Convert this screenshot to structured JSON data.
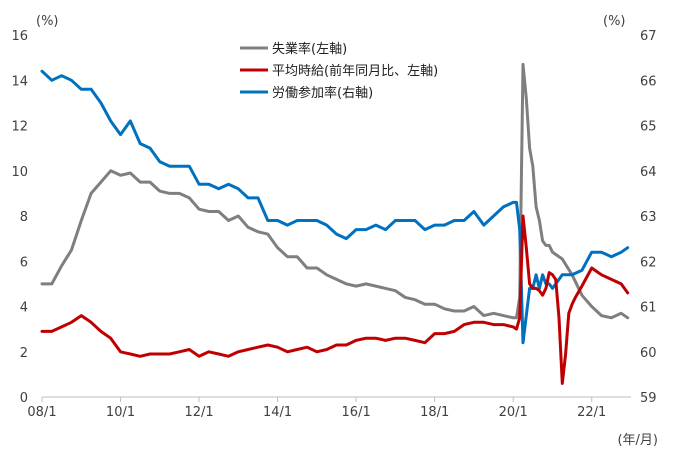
{
  "chart_data": {
    "type": "line",
    "units": {
      "left": "(%)",
      "right": "(%)",
      "x": "(年/月)"
    },
    "x_ticks": [
      "08/1",
      "10/1",
      "12/1",
      "14/1",
      "16/1",
      "18/1",
      "20/1",
      "22/1"
    ],
    "y_left": {
      "min": 0,
      "max": 16,
      "ticks": [
        0,
        2,
        4,
        6,
        8,
        10,
        12,
        14,
        16
      ]
    },
    "y_right": {
      "min": 59,
      "max": 67,
      "ticks": [
        59,
        60,
        61,
        62,
        63,
        64,
        65,
        66,
        67
      ]
    },
    "grid": false,
    "legend_position": "top-center",
    "series": [
      {
        "name": "失業率(左軸)",
        "axis": "left",
        "color": "#7f7f7f",
        "points": [
          [
            "2008-01",
            5.0
          ],
          [
            "2008-04",
            5.0
          ],
          [
            "2008-07",
            5.8
          ],
          [
            "2008-10",
            6.5
          ],
          [
            "2009-01",
            7.8
          ],
          [
            "2009-04",
            9.0
          ],
          [
            "2009-07",
            9.5
          ],
          [
            "2009-10",
            10.0
          ],
          [
            "2010-01",
            9.8
          ],
          [
            "2010-04",
            9.9
          ],
          [
            "2010-07",
            9.5
          ],
          [
            "2010-10",
            9.5
          ],
          [
            "2011-01",
            9.1
          ],
          [
            "2011-04",
            9.0
          ],
          [
            "2011-07",
            9.0
          ],
          [
            "2011-10",
            8.8
          ],
          [
            "2012-01",
            8.3
          ],
          [
            "2012-04",
            8.2
          ],
          [
            "2012-07",
            8.2
          ],
          [
            "2012-10",
            7.8
          ],
          [
            "2013-01",
            8.0
          ],
          [
            "2013-04",
            7.5
          ],
          [
            "2013-07",
            7.3
          ],
          [
            "2013-10",
            7.2
          ],
          [
            "2014-01",
            6.6
          ],
          [
            "2014-04",
            6.2
          ],
          [
            "2014-07",
            6.2
          ],
          [
            "2014-10",
            5.7
          ],
          [
            "2015-01",
            5.7
          ],
          [
            "2015-04",
            5.4
          ],
          [
            "2015-07",
            5.2
          ],
          [
            "2015-10",
            5.0
          ],
          [
            "2016-01",
            4.9
          ],
          [
            "2016-04",
            5.0
          ],
          [
            "2016-07",
            4.9
          ],
          [
            "2016-10",
            4.8
          ],
          [
            "2017-01",
            4.7
          ],
          [
            "2017-04",
            4.4
          ],
          [
            "2017-07",
            4.3
          ],
          [
            "2017-10",
            4.1
          ],
          [
            "2018-01",
            4.1
          ],
          [
            "2018-04",
            3.9
          ],
          [
            "2018-07",
            3.8
          ],
          [
            "2018-10",
            3.8
          ],
          [
            "2019-01",
            4.0
          ],
          [
            "2019-04",
            3.6
          ],
          [
            "2019-07",
            3.7
          ],
          [
            "2019-10",
            3.6
          ],
          [
            "2020-01",
            3.5
          ],
          [
            "2020-02",
            3.5
          ],
          [
            "2020-03",
            4.4
          ],
          [
            "2020-04",
            14.7
          ],
          [
            "2020-05",
            13.2
          ],
          [
            "2020-06",
            11.0
          ],
          [
            "2020-07",
            10.2
          ],
          [
            "2020-08",
            8.4
          ],
          [
            "2020-09",
            7.8
          ],
          [
            "2020-10",
            6.9
          ],
          [
            "2020-11",
            6.7
          ],
          [
            "2020-12",
            6.7
          ],
          [
            "2021-01",
            6.4
          ],
          [
            "2021-04",
            6.1
          ],
          [
            "2021-07",
            5.4
          ],
          [
            "2021-10",
            4.5
          ],
          [
            "2022-01",
            4.0
          ],
          [
            "2022-04",
            3.6
          ],
          [
            "2022-07",
            3.5
          ],
          [
            "2022-10",
            3.7
          ],
          [
            "2022-12",
            3.5
          ]
        ]
      },
      {
        "name": "平均時給(前年同月比、左軸)",
        "axis": "left",
        "color": "#c00000",
        "points": [
          [
            "2008-01",
            2.9
          ],
          [
            "2008-04",
            2.9
          ],
          [
            "2008-07",
            3.1
          ],
          [
            "2008-10",
            3.3
          ],
          [
            "2009-01",
            3.6
          ],
          [
            "2009-04",
            3.3
          ],
          [
            "2009-07",
            2.9
          ],
          [
            "2009-10",
            2.6
          ],
          [
            "2010-01",
            2.0
          ],
          [
            "2010-04",
            1.9
          ],
          [
            "2010-07",
            1.8
          ],
          [
            "2010-10",
            1.9
          ],
          [
            "2011-01",
            1.9
          ],
          [
            "2011-04",
            1.9
          ],
          [
            "2011-07",
            2.0
          ],
          [
            "2011-10",
            2.1
          ],
          [
            "2012-01",
            1.8
          ],
          [
            "2012-04",
            2.0
          ],
          [
            "2012-07",
            1.9
          ],
          [
            "2012-10",
            1.8
          ],
          [
            "2013-01",
            2.0
          ],
          [
            "2013-04",
            2.1
          ],
          [
            "2013-07",
            2.2
          ],
          [
            "2013-10",
            2.3
          ],
          [
            "2014-01",
            2.2
          ],
          [
            "2014-04",
            2.0
          ],
          [
            "2014-07",
            2.1
          ],
          [
            "2014-10",
            2.2
          ],
          [
            "2015-01",
            2.0
          ],
          [
            "2015-04",
            2.1
          ],
          [
            "2015-07",
            2.3
          ],
          [
            "2015-10",
            2.3
          ],
          [
            "2016-01",
            2.5
          ],
          [
            "2016-04",
            2.6
          ],
          [
            "2016-07",
            2.6
          ],
          [
            "2016-10",
            2.5
          ],
          [
            "2017-01",
            2.6
          ],
          [
            "2017-04",
            2.6
          ],
          [
            "2017-07",
            2.5
          ],
          [
            "2017-10",
            2.4
          ],
          [
            "2018-01",
            2.8
          ],
          [
            "2018-04",
            2.8
          ],
          [
            "2018-07",
            2.9
          ],
          [
            "2018-10",
            3.2
          ],
          [
            "2019-01",
            3.3
          ],
          [
            "2019-04",
            3.3
          ],
          [
            "2019-07",
            3.2
          ],
          [
            "2019-10",
            3.2
          ],
          [
            "2020-01",
            3.1
          ],
          [
            "2020-02",
            3.0
          ],
          [
            "2020-03",
            3.5
          ],
          [
            "2020-04",
            8.0
          ],
          [
            "2020-05",
            6.6
          ],
          [
            "2020-06",
            5.0
          ],
          [
            "2020-07",
            4.8
          ],
          [
            "2020-08",
            4.8
          ],
          [
            "2020-09",
            4.7
          ],
          [
            "2020-10",
            4.5
          ],
          [
            "2020-11",
            4.8
          ],
          [
            "2020-12",
            5.5
          ],
          [
            "2021-01",
            5.4
          ],
          [
            "2021-02",
            5.2
          ],
          [
            "2021-03",
            3.5
          ],
          [
            "2021-04",
            0.6
          ],
          [
            "2021-05",
            1.9
          ],
          [
            "2021-06",
            3.7
          ],
          [
            "2021-07",
            4.1
          ],
          [
            "2021-08",
            4.4
          ],
          [
            "2021-10",
            4.9
          ],
          [
            "2022-01",
            5.7
          ],
          [
            "2022-04",
            5.4
          ],
          [
            "2022-07",
            5.2
          ],
          [
            "2022-10",
            5.0
          ],
          [
            "2022-12",
            4.6
          ]
        ]
      },
      {
        "name": "労働参加率(右軸)",
        "axis": "right",
        "color": "#0070c0",
        "points": [
          [
            "2008-01",
            66.2
          ],
          [
            "2008-04",
            66.0
          ],
          [
            "2008-07",
            66.1
          ],
          [
            "2008-10",
            66.0
          ],
          [
            "2009-01",
            65.8
          ],
          [
            "2009-04",
            65.8
          ],
          [
            "2009-07",
            65.5
          ],
          [
            "2009-10",
            65.1
          ],
          [
            "2010-01",
            64.8
          ],
          [
            "2010-04",
            65.1
          ],
          [
            "2010-07",
            64.6
          ],
          [
            "2010-10",
            64.5
          ],
          [
            "2011-01",
            64.2
          ],
          [
            "2011-04",
            64.1
          ],
          [
            "2011-07",
            64.1
          ],
          [
            "2011-10",
            64.1
          ],
          [
            "2012-01",
            63.7
          ],
          [
            "2012-04",
            63.7
          ],
          [
            "2012-07",
            63.6
          ],
          [
            "2012-10",
            63.7
          ],
          [
            "2013-01",
            63.6
          ],
          [
            "2013-04",
            63.4
          ],
          [
            "2013-07",
            63.4
          ],
          [
            "2013-10",
            62.9
          ],
          [
            "2014-01",
            62.9
          ],
          [
            "2014-04",
            62.8
          ],
          [
            "2014-07",
            62.9
          ],
          [
            "2014-10",
            62.9
          ],
          [
            "2015-01",
            62.9
          ],
          [
            "2015-04",
            62.8
          ],
          [
            "2015-07",
            62.6
          ],
          [
            "2015-10",
            62.5
          ],
          [
            "2016-01",
            62.7
          ],
          [
            "2016-04",
            62.7
          ],
          [
            "2016-07",
            62.8
          ],
          [
            "2016-10",
            62.7
          ],
          [
            "2017-01",
            62.9
          ],
          [
            "2017-04",
            62.9
          ],
          [
            "2017-07",
            62.9
          ],
          [
            "2017-10",
            62.7
          ],
          [
            "2018-01",
            62.8
          ],
          [
            "2018-04",
            62.8
          ],
          [
            "2018-07",
            62.9
          ],
          [
            "2018-10",
            62.9
          ],
          [
            "2019-01",
            63.1
          ],
          [
            "2019-04",
            62.8
          ],
          [
            "2019-07",
            63.0
          ],
          [
            "2019-10",
            63.2
          ],
          [
            "2020-01",
            63.3
          ],
          [
            "2020-02",
            63.3
          ],
          [
            "2020-03",
            62.7
          ],
          [
            "2020-04",
            60.2
          ],
          [
            "2020-05",
            60.8
          ],
          [
            "2020-06",
            61.4
          ],
          [
            "2020-07",
            61.4
          ],
          [
            "2020-08",
            61.7
          ],
          [
            "2020-09",
            61.4
          ],
          [
            "2020-10",
            61.7
          ],
          [
            "2020-11",
            61.5
          ],
          [
            "2020-12",
            61.5
          ],
          [
            "2021-01",
            61.4
          ],
          [
            "2021-04",
            61.7
          ],
          [
            "2021-07",
            61.7
          ],
          [
            "2021-10",
            61.8
          ],
          [
            "2022-01",
            62.2
          ],
          [
            "2022-04",
            62.2
          ],
          [
            "2022-07",
            62.1
          ],
          [
            "2022-10",
            62.2
          ],
          [
            "2022-12",
            62.3
          ]
        ]
      }
    ]
  }
}
